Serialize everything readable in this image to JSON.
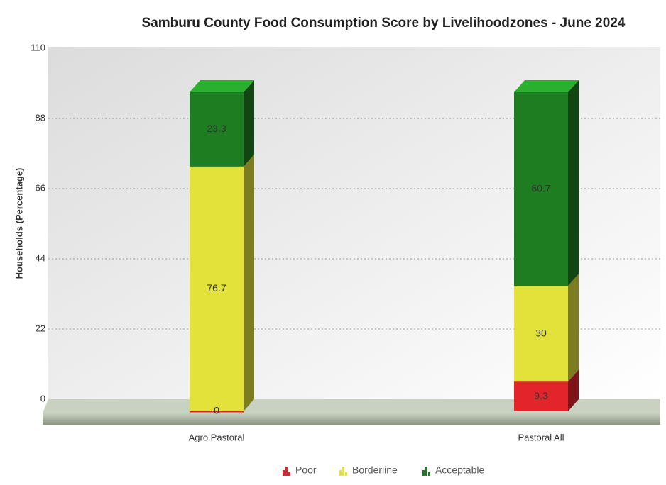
{
  "chart_data": {
    "type": "bar",
    "stacked": true,
    "title": "Samburu County Food Consumption Score by Livelihoodzones - June 2024",
    "y_label": "Households (Percentage)",
    "categories": [
      "Agro Pastoral",
      "Pastoral All"
    ],
    "series": [
      {
        "name": "Poor",
        "color": "#e3242b",
        "values": [
          0,
          9.3
        ]
      },
      {
        "name": "Borderline",
        "color": "#e2e23a",
        "values": [
          76.7,
          30
        ]
      },
      {
        "name": "Acceptable",
        "color": "#1f7d21",
        "values": [
          23.3,
          60.7
        ]
      }
    ],
    "ylim": [
      0,
      110
    ],
    "yticks": [
      0,
      22,
      44,
      66,
      88,
      110
    ],
    "grid": true,
    "legend": "bottom"
  }
}
